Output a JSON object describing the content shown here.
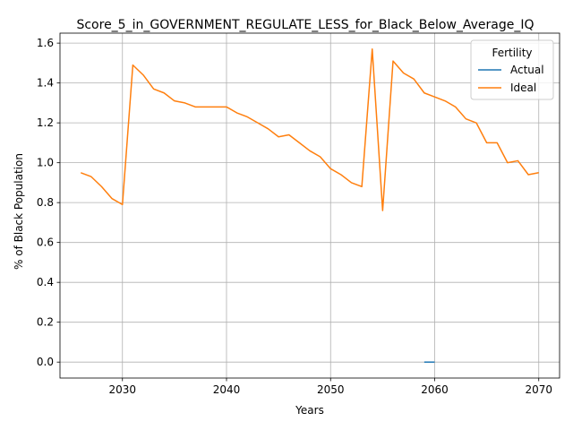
{
  "chart_data": {
    "type": "line",
    "title": "Score_5_in_GOVERNMENT_REGULATE_LESS_for_Black_Below_Average_IQ",
    "xlabel": "Years",
    "ylabel": "% of Black Population",
    "xlim": [
      2024,
      2072
    ],
    "ylim": [
      -0.08,
      1.65
    ],
    "x_ticks": [
      2030,
      2040,
      2050,
      2060,
      2070
    ],
    "y_ticks": [
      0.0,
      0.2,
      0.4,
      0.6,
      0.8,
      1.0,
      1.2,
      1.4,
      1.6
    ],
    "x_tick_labels": [
      "2030",
      "2040",
      "2050",
      "2060",
      "2070"
    ],
    "y_tick_labels": [
      "0.0",
      "0.2",
      "0.4",
      "0.6",
      "0.8",
      "1.0",
      "1.2",
      "1.4",
      "1.6"
    ],
    "grid": true,
    "legend": {
      "title": "Fertility",
      "placement": "top-right"
    },
    "series": [
      {
        "name": "Actual",
        "color": "#1f77b4",
        "x": [
          2059,
          2060
        ],
        "y": [
          0.0,
          0.0
        ]
      },
      {
        "name": "Ideal",
        "color": "#ff7f0e",
        "x": [
          2026,
          2027,
          2028,
          2029,
          2030,
          2031,
          2032,
          2033,
          2034,
          2035,
          2036,
          2037,
          2038,
          2039,
          2040,
          2041,
          2042,
          2043,
          2044,
          2045,
          2046,
          2047,
          2048,
          2049,
          2050,
          2051,
          2052,
          2053,
          2054,
          2055,
          2056,
          2057,
          2058,
          2059,
          2060,
          2061,
          2062,
          2063,
          2064,
          2065,
          2066,
          2067,
          2068,
          2069,
          2070
        ],
        "y": [
          0.95,
          0.93,
          0.88,
          0.82,
          0.79,
          1.49,
          1.44,
          1.37,
          1.35,
          1.31,
          1.3,
          1.28,
          1.28,
          1.28,
          1.28,
          1.25,
          1.23,
          1.2,
          1.17,
          1.13,
          1.14,
          1.1,
          1.06,
          1.03,
          0.97,
          0.94,
          0.9,
          0.88,
          1.57,
          0.76,
          1.51,
          1.45,
          1.42,
          1.35,
          1.33,
          1.31,
          1.28,
          1.22,
          1.2,
          1.1,
          1.1,
          1.0,
          1.01,
          0.94,
          0.95
        ]
      }
    ]
  }
}
